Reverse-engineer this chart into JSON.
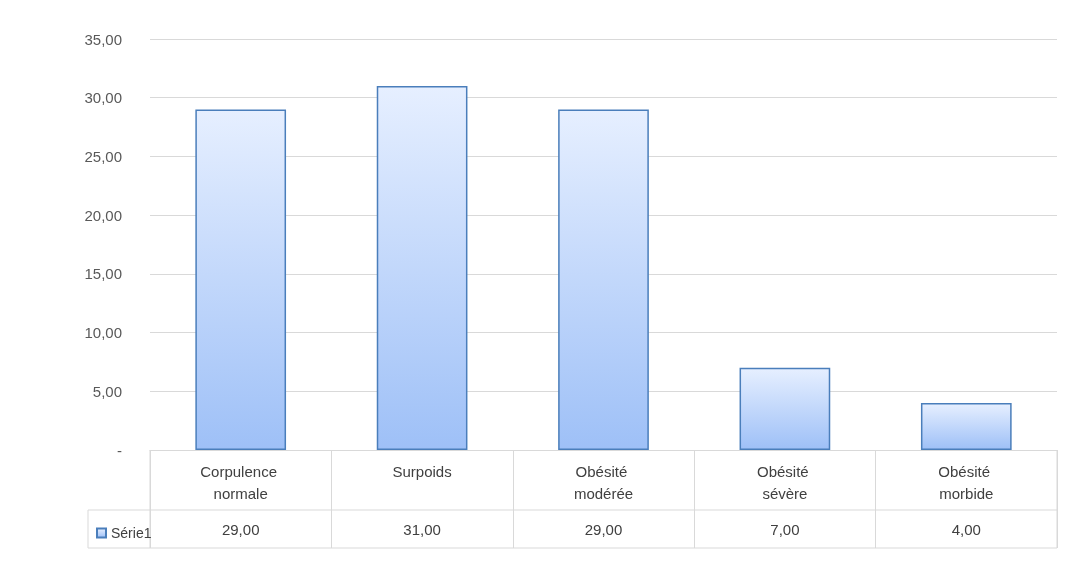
{
  "chart_data": {
    "type": "bar",
    "categories": [
      "Corpulence normale",
      "Surpoids",
      "Obésité modérée",
      "Obésité sévère",
      "Obésité morbide"
    ],
    "series": [
      {
        "name": "Série1",
        "color": "#4a7ebb",
        "values": [
          29,
          31,
          29,
          7,
          4
        ],
        "value_labels": [
          "29,00",
          "31,00",
          "29,00",
          "7,00",
          "4,00"
        ]
      }
    ],
    "ylim": [
      0,
      35
    ],
    "yticks": [
      {
        "value": 0,
        "label": "-"
      },
      {
        "value": 5,
        "label": "5,00"
      },
      {
        "value": 10,
        "label": "10,00"
      },
      {
        "value": 15,
        "label": "15,00"
      },
      {
        "value": 20,
        "label": "20,00"
      },
      {
        "value": 25,
        "label": "25,00"
      },
      {
        "value": 30,
        "label": "30,00"
      },
      {
        "value": 35,
        "label": "35,00"
      }
    ],
    "grid": "y",
    "legend": "bottom"
  }
}
